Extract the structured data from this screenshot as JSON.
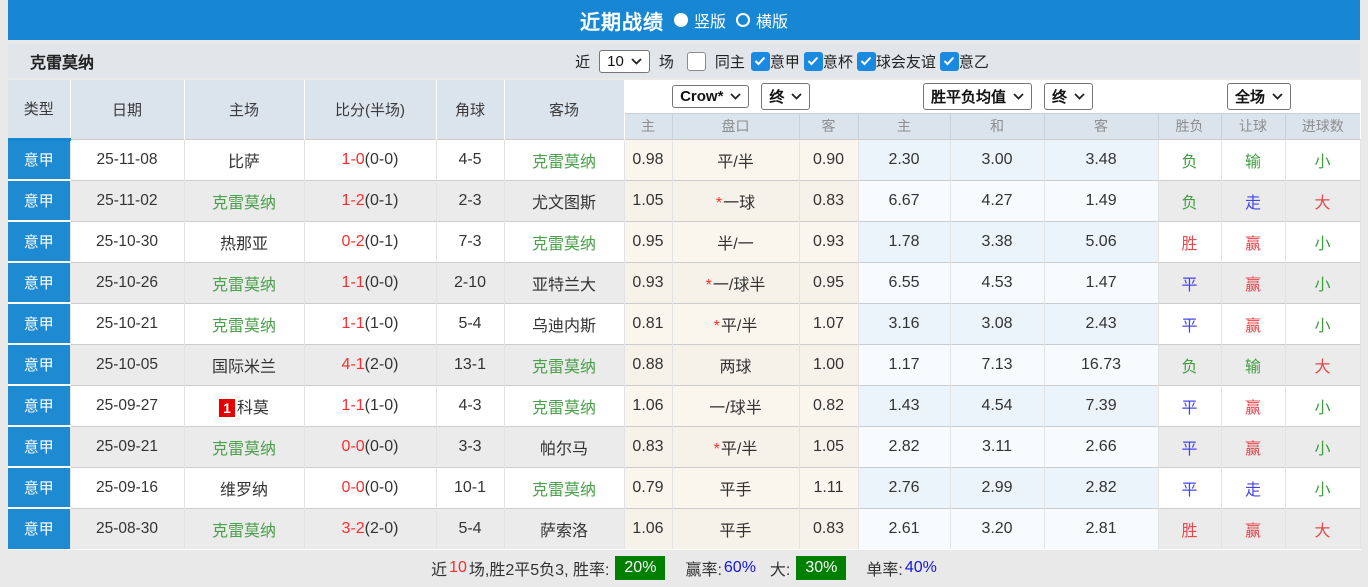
{
  "colors": {
    "accent_blue": "#1787d3",
    "league_bg": "#1e8ad2",
    "team_green": "#4ba04b",
    "score_red": "#ff2d2d",
    "result_red": "#e6484d",
    "result_blue": "#4444ee",
    "result_green": "#3f9f3f",
    "rank_badge_red": "#e60000",
    "rate_badge_green": "#008000",
    "rate_blue": "#1414e6",
    "odds_col_cream": "#fbf6ed",
    "avg_col_lightblue": "#eaf4fa"
  },
  "title_bar": {
    "title": "近期战绩",
    "radio_vertical": "竖版",
    "radio_horizontal": "横版"
  },
  "filter_bar": {
    "team": "克雷莫纳",
    "near_label": "近",
    "count_value": "10",
    "games_label": "场",
    "unchecked_label": "同主",
    "checked_labels": [
      "意甲",
      "意杯",
      "球会友谊",
      "意乙"
    ]
  },
  "table": {
    "star_symbol": "*",
    "col_headers": {
      "type": "类型",
      "date": "日期",
      "home": "主场",
      "score": "比分(半场)",
      "corner": "角球",
      "away": "客场"
    },
    "odds_group": {
      "bookmaker": "Crow*",
      "period": "终",
      "sub_home": "主",
      "sub_pan": "盘口",
      "sub_away": "客"
    },
    "avg_group": {
      "label": "胜平负均值",
      "period": "终",
      "sub_home": "主",
      "sub_draw": "和",
      "sub_away": "客"
    },
    "result_group": {
      "label": "全场",
      "sub_result": "胜负",
      "sub_handicap": "让球",
      "sub_goals": "进球数"
    },
    "rows": [
      {
        "league": "意甲",
        "date": "25-11-08",
        "home": "比萨",
        "home_green": false,
        "home_rank": "",
        "score": "1-0",
        "half": "(0-0)",
        "corner": "4-5",
        "away": "克雷莫纳",
        "away_green": true,
        "odds_home": "0.98",
        "handicap": "平/半",
        "handicap_star": false,
        "odds_away": "0.90",
        "avg_home": "2.30",
        "avg_draw": "3.00",
        "avg_away": "3.48",
        "result": "负",
        "result_color": "green",
        "let_result": "输",
        "let_color": "green",
        "goal_result": "小",
        "goal_color": "green"
      },
      {
        "league": "意甲",
        "date": "25-11-02",
        "home": "克雷莫纳",
        "home_green": true,
        "home_rank": "",
        "score": "1-2",
        "half": "(0-1)",
        "corner": "2-3",
        "away": "尤文图斯",
        "away_green": false,
        "odds_home": "1.05",
        "handicap": "一球",
        "handicap_star": true,
        "odds_away": "0.83",
        "avg_home": "6.67",
        "avg_draw": "4.27",
        "avg_away": "1.49",
        "result": "负",
        "result_color": "green",
        "let_result": "走",
        "let_color": "blue",
        "goal_result": "大",
        "goal_color": "red"
      },
      {
        "league": "意甲",
        "date": "25-10-30",
        "home": "热那亚",
        "home_green": false,
        "home_rank": "",
        "score": "0-2",
        "half": "(0-1)",
        "corner": "7-3",
        "away": "克雷莫纳",
        "away_green": true,
        "odds_home": "0.95",
        "handicap": "半/一",
        "handicap_star": false,
        "odds_away": "0.93",
        "avg_home": "1.78",
        "avg_draw": "3.38",
        "avg_away": "5.06",
        "result": "胜",
        "result_color": "red",
        "let_result": "赢",
        "let_color": "red",
        "goal_result": "小",
        "goal_color": "green"
      },
      {
        "league": "意甲",
        "date": "25-10-26",
        "home": "克雷莫纳",
        "home_green": true,
        "home_rank": "",
        "score": "1-1",
        "half": "(0-0)",
        "corner": "2-10",
        "away": "亚特兰大",
        "away_green": false,
        "odds_home": "0.93",
        "handicap": "一/球半",
        "handicap_star": true,
        "odds_away": "0.95",
        "avg_home": "6.55",
        "avg_draw": "4.53",
        "avg_away": "1.47",
        "result": "平",
        "result_color": "blue",
        "let_result": "赢",
        "let_color": "red",
        "goal_result": "小",
        "goal_color": "green"
      },
      {
        "league": "意甲",
        "date": "25-10-21",
        "home": "克雷莫纳",
        "home_green": true,
        "home_rank": "",
        "score": "1-1",
        "half": "(1-0)",
        "corner": "5-4",
        "away": "乌迪内斯",
        "away_green": false,
        "odds_home": "0.81",
        "handicap": "平/半",
        "handicap_star": true,
        "odds_away": "1.07",
        "avg_home": "3.16",
        "avg_draw": "3.08",
        "avg_away": "2.43",
        "result": "平",
        "result_color": "blue",
        "let_result": "赢",
        "let_color": "red",
        "goal_result": "小",
        "goal_color": "green"
      },
      {
        "league": "意甲",
        "date": "25-10-05",
        "home": "国际米兰",
        "home_green": false,
        "home_rank": "",
        "score": "4-1",
        "half": "(2-0)",
        "corner": "13-1",
        "away": "克雷莫纳",
        "away_green": true,
        "odds_home": "0.88",
        "handicap": "两球",
        "handicap_star": false,
        "odds_away": "1.00",
        "avg_home": "1.17",
        "avg_draw": "7.13",
        "avg_away": "16.73",
        "result": "负",
        "result_color": "green",
        "let_result": "输",
        "let_color": "green",
        "goal_result": "大",
        "goal_color": "red"
      },
      {
        "league": "意甲",
        "date": "25-09-27",
        "home": "科莫",
        "home_green": false,
        "home_rank": "1",
        "score": "1-1",
        "half": "(1-0)",
        "corner": "4-3",
        "away": "克雷莫纳",
        "away_green": true,
        "odds_home": "1.06",
        "handicap": "一/球半",
        "handicap_star": false,
        "odds_away": "0.82",
        "avg_home": "1.43",
        "avg_draw": "4.54",
        "avg_away": "7.39",
        "result": "平",
        "result_color": "blue",
        "let_result": "赢",
        "let_color": "red",
        "goal_result": "小",
        "goal_color": "green"
      },
      {
        "league": "意甲",
        "date": "25-09-21",
        "home": "克雷莫纳",
        "home_green": true,
        "home_rank": "",
        "score": "0-0",
        "half": "(0-0)",
        "corner": "3-3",
        "away": "帕尔马",
        "away_green": false,
        "odds_home": "0.83",
        "handicap": "平/半",
        "handicap_star": true,
        "odds_away": "1.05",
        "avg_home": "2.82",
        "avg_draw": "3.11",
        "avg_away": "2.66",
        "result": "平",
        "result_color": "blue",
        "let_result": "赢",
        "let_color": "red",
        "goal_result": "小",
        "goal_color": "green"
      },
      {
        "league": "意甲",
        "date": "25-09-16",
        "home": "维罗纳",
        "home_green": false,
        "home_rank": "",
        "score": "0-0",
        "half": "(0-0)",
        "corner": "10-1",
        "away": "克雷莫纳",
        "away_green": true,
        "odds_home": "0.79",
        "handicap": "平手",
        "handicap_star": false,
        "odds_away": "1.11",
        "avg_home": "2.76",
        "avg_draw": "2.99",
        "avg_away": "2.82",
        "result": "平",
        "result_color": "blue",
        "let_result": "走",
        "let_color": "blue",
        "goal_result": "小",
        "goal_color": "green"
      },
      {
        "league": "意甲",
        "date": "25-08-30",
        "home": "克雷莫纳",
        "home_green": true,
        "home_rank": "",
        "score": "3-2",
        "half": "(2-0)",
        "corner": "5-4",
        "away": "萨索洛",
        "away_green": false,
        "odds_home": "1.06",
        "handicap": "平手",
        "handicap_star": false,
        "odds_away": "0.83",
        "avg_home": "2.61",
        "avg_draw": "3.20",
        "avg_away": "2.81",
        "result": "胜",
        "result_color": "red",
        "let_result": "赢",
        "let_color": "red",
        "goal_result": "大",
        "goal_color": "red"
      }
    ]
  },
  "footer": {
    "near_label": "近",
    "count": "10",
    "summary": "场,胜2平5负3, 胜率:",
    "win_rate": "20%",
    "handicap_label": "赢率:",
    "handicap_rate": "60%",
    "big_label": "大:",
    "big_rate": "30%",
    "single_label": "单率:",
    "single_rate": "40%"
  }
}
